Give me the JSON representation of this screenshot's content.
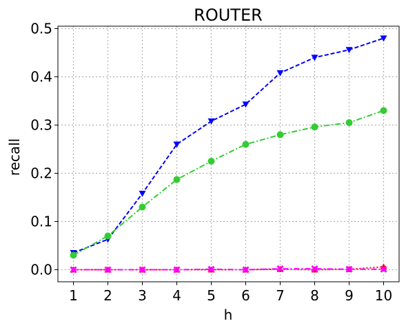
{
  "chart_data": {
    "type": "line",
    "title": "ROUTER",
    "xlabel": "h",
    "ylabel": "recall",
    "x": [
      1,
      2,
      3,
      4,
      5,
      6,
      7,
      8,
      9,
      10
    ],
    "xlim": [
      0.55,
      10.45
    ],
    "ylim": [
      -0.025,
      0.505
    ],
    "xticks": [
      "1",
      "2",
      "3",
      "4",
      "5",
      "6",
      "7",
      "8",
      "9",
      "10"
    ],
    "yticks": [
      0.0,
      0.1,
      0.2,
      0.3,
      0.4,
      0.5
    ],
    "ytick_labels": [
      "0.0",
      "0.1",
      "0.2",
      "0.3",
      "0.4",
      "0.5"
    ],
    "grid": true,
    "series": [
      {
        "color": "#0000ff",
        "linestyle": "dashed",
        "marker": "triangle-down",
        "values": [
          0.035,
          0.063,
          0.158,
          0.26,
          0.308,
          0.343,
          0.408,
          0.44,
          0.456,
          0.48
        ]
      },
      {
        "color": "#32cd32",
        "linestyle": "dashdot",
        "marker": "circle",
        "values": [
          0.03,
          0.07,
          0.13,
          0.187,
          0.225,
          0.26,
          0.28,
          0.296,
          0.305,
          0.33
        ]
      },
      {
        "color": "#ff0000",
        "linestyle": "dotted",
        "marker": "triangle-up",
        "values": [
          0.0,
          0.0,
          0.0,
          0.0,
          0.0,
          0.0,
          0.001,
          0.0,
          0.001,
          0.006
        ]
      },
      {
        "color": "#ff00ff",
        "linestyle": "dashdot",
        "marker": "x",
        "values": [
          0.0,
          0.0,
          0.0,
          0.0,
          0.001,
          0.0,
          0.002,
          0.002,
          0.001,
          0.001
        ]
      }
    ]
  }
}
